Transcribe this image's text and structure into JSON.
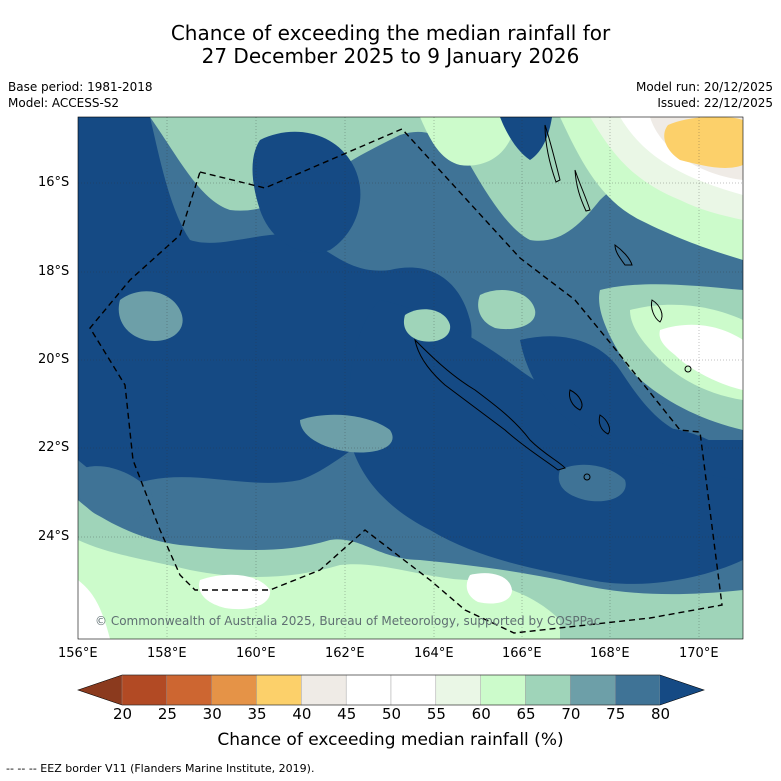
{
  "title": {
    "line1": "Chance of exceeding the median rainfall for",
    "line2": "27 December 2025 to 9 January 2026"
  },
  "meta": {
    "base_period": "Base period: 1981-2018",
    "model": "Model: ACCESS-S2",
    "model_run": "Model run: 20/12/2025",
    "issued": "Issued: 22/12/2025"
  },
  "axes": {
    "lat_labels": [
      "16°S",
      "18°S",
      "20°S",
      "22°S",
      "24°S"
    ],
    "lon_labels": [
      "156°E",
      "158°E",
      "160°E",
      "162°E",
      "164°E",
      "166°E",
      "168°E",
      "170°E"
    ]
  },
  "colorbar": {
    "ticks": [
      "20",
      "25",
      "30",
      "35",
      "40",
      "45",
      "50",
      "55",
      "60",
      "65",
      "70",
      "75",
      "80"
    ],
    "colors": [
      "#8b3a1e",
      "#b24a24",
      "#cd6631",
      "#e59347",
      "#fcd06a",
      "#efebe6",
      "#ffffff",
      "#ffffff",
      "#eaf7e6",
      "#ccfbcb",
      "#9fd4b9",
      "#6d9fa8",
      "#3f7396",
      "#154a84"
    ],
    "label": "Chance of exceeding median rainfall (%)"
  },
  "copyright": "© Commonwealth of Australia 2025, Bureau of Meteorology, supported by COSPPac",
  "footer": "--  --  -- EEZ border V11 (Flanders Marine Institute, 2019).",
  "map_colors": {
    "c80": "#154a84",
    "c75": "#3f7396",
    "c70": "#6d9fa8",
    "c65": "#9fd4b9",
    "c60": "#ccfbcb",
    "c55": "#eaf7e6",
    "c50": "#ffffff",
    "c45": "#efebe6",
    "c35": "#fcd06a"
  }
}
